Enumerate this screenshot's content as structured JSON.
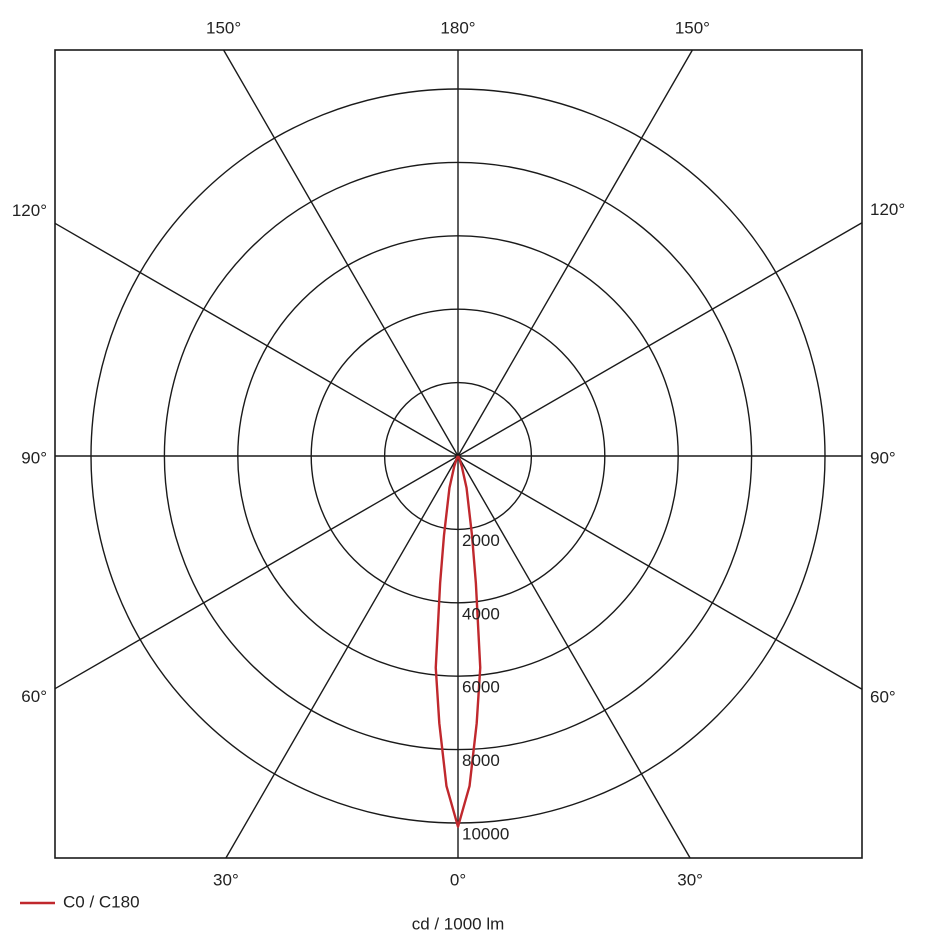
{
  "chart_data": {
    "type": "polar",
    "axis_label": "cd / 1000 lm",
    "rlim": [
      0,
      10000
    ],
    "rticks": [
      2000,
      4000,
      6000,
      8000,
      10000
    ],
    "angle_ticks": [
      {
        "value": 0,
        "label": "0°"
      },
      {
        "value": 30,
        "label": "30°"
      },
      {
        "value": 60,
        "label": "60°"
      },
      {
        "value": 90,
        "label": "90°"
      },
      {
        "value": 120,
        "label": "120°"
      },
      {
        "value": 150,
        "label": "150°"
      },
      {
        "value": 180,
        "label": "180°"
      }
    ],
    "legend": "bottom-left",
    "series": [
      {
        "name": "C0 / C180",
        "color": "#c0282d",
        "x": [
          -90,
          -30,
          -20,
          -15,
          -10,
          -8,
          -6,
          -4,
          -2,
          0,
          2,
          4,
          6,
          8,
          10,
          15,
          20,
          30,
          90
        ],
        "values": [
          0,
          50,
          300,
          900,
          2200,
          3500,
          5800,
          7300,
          9000,
          10100,
          9000,
          7300,
          5800,
          3500,
          2200,
          900,
          300,
          50,
          0
        ]
      }
    ]
  }
}
